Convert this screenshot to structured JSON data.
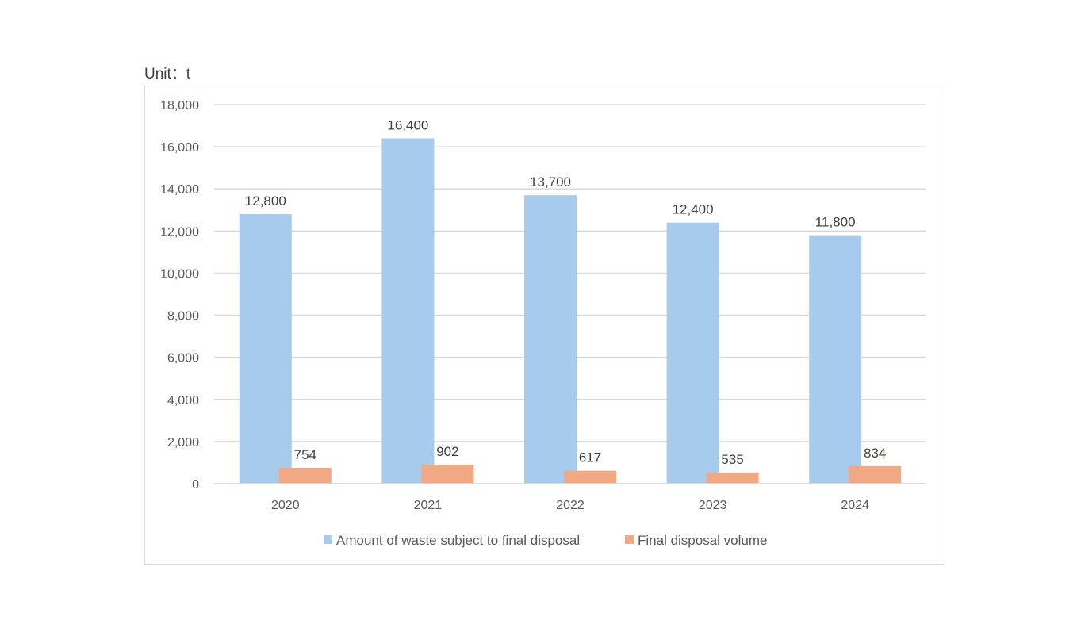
{
  "chart_data": {
    "type": "bar",
    "unit_label": "Unit：t",
    "categories": [
      "2020",
      "2021",
      "2022",
      "2023",
      "2024"
    ],
    "series": [
      {
        "name": "Amount of waste subject to final disposal",
        "values": [
          12800,
          16400,
          13700,
          12400,
          11800
        ],
        "labels": [
          "12,800",
          "16,400",
          "13,700",
          "12,400",
          "11,800"
        ],
        "color": "#a7cbec"
      },
      {
        "name": "Final disposal volume",
        "values": [
          754,
          902,
          617,
          535,
          834
        ],
        "labels": [
          "754",
          "902",
          "617",
          "535",
          "834"
        ],
        "color": "#f1a985"
      }
    ],
    "yticks": [
      "0",
      "2,000",
      "4,000",
      "6,000",
      "8,000",
      "10,000",
      "12,000",
      "14,000",
      "16,000",
      "18,000"
    ],
    "ylim": [
      0,
      18000
    ],
    "grid": true,
    "legend": "bottom"
  }
}
